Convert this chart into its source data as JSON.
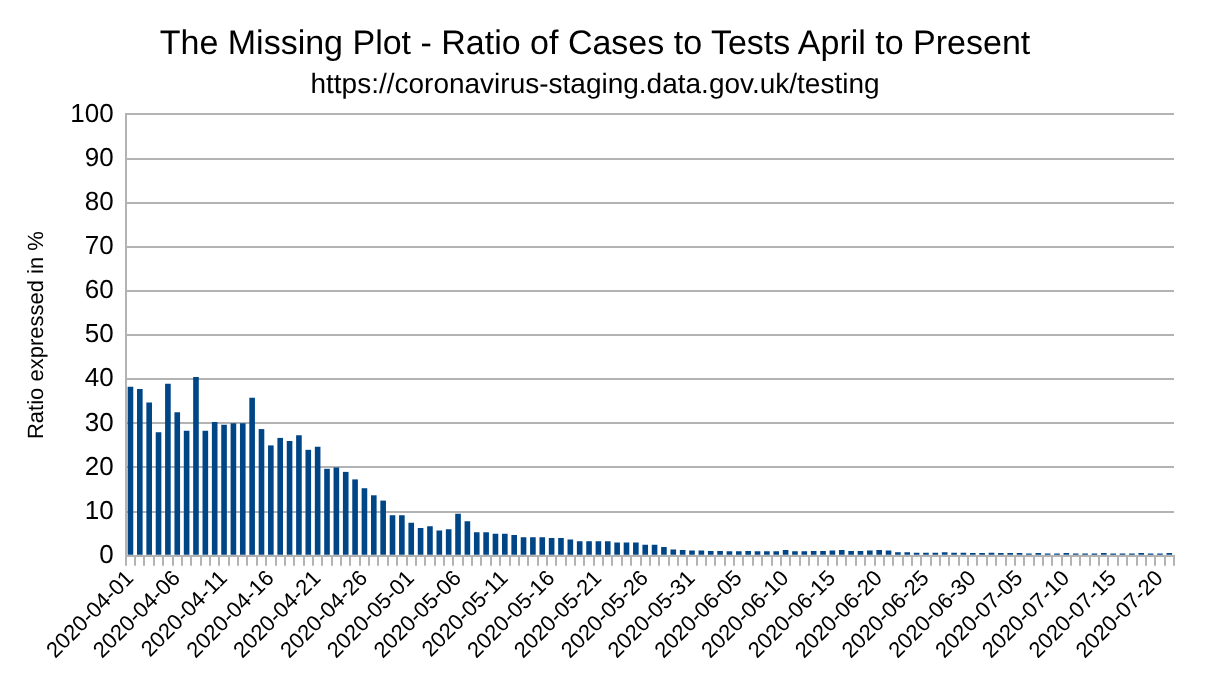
{
  "chart_data": {
    "type": "bar",
    "title": "The Missing Plot - Ratio of Cases to Tests April to Present",
    "subtitle": "https://coronavirus-staging.data.gov.uk/testing",
    "ylabel": "Ratio expressed in %",
    "categories": [
      "2020-04-01",
      null,
      null,
      null,
      null,
      "2020-04-06",
      null,
      null,
      null,
      null,
      "2020-04-11",
      null,
      null,
      null,
      null,
      "2020-04-16",
      null,
      null,
      null,
      null,
      "2020-04-21",
      null,
      null,
      null,
      null,
      "2020-04-26",
      null,
      null,
      null,
      null,
      "2020-05-01",
      null,
      null,
      null,
      null,
      "2020-05-06",
      null,
      null,
      null,
      null,
      "2020-05-11",
      null,
      null,
      null,
      null,
      "2020-05-16",
      null,
      null,
      null,
      null,
      "2020-05-21",
      null,
      null,
      null,
      null,
      "2020-05-26",
      null,
      null,
      null,
      null,
      "2020-05-31",
      null,
      null,
      null,
      null,
      "2020-06-05",
      null,
      null,
      null,
      null,
      "2020-06-10",
      null,
      null,
      null,
      null,
      "2020-06-15",
      null,
      null,
      null,
      null,
      "2020-06-20",
      null,
      null,
      null,
      null,
      "2020-06-25",
      null,
      null,
      null,
      null,
      "2020-06-30",
      null,
      null,
      null,
      null,
      "2020-07-05",
      null,
      null,
      null,
      null,
      "2020-07-10",
      null,
      null,
      null,
      null,
      "2020-07-15",
      null,
      null,
      null,
      null,
      "2020-07-20",
      null
    ],
    "values": [
      38.3,
      37.8,
      34.7,
      28,
      39,
      32.5,
      28.3,
      40.5,
      28.3,
      30.3,
      29.7,
      30,
      30,
      35.8,
      28.7,
      25,
      26.7,
      26,
      27.3,
      24,
      24.7,
      19.7,
      20,
      19,
      17.3,
      15.3,
      13.7,
      12.5,
      9.2,
      9.2,
      7.5,
      6.3,
      6.7,
      5.7,
      6,
      9.5,
      7.8,
      5.3,
      5.3,
      5,
      5,
      4.7,
      4.2,
      4.2,
      4.2,
      4,
      4,
      3.7,
      3.3,
      3.3,
      3.3,
      3.3,
      3,
      3,
      3,
      2.5,
      2.5,
      2,
      1.4,
      1.3,
      1.2,
      1.2,
      1.1,
      1.1,
      1,
      1,
      1.1,
      1,
      1,
      1,
      1.3,
      1,
      1,
      1.1,
      1.1,
      1.2,
      1.3,
      1.1,
      1.1,
      1.2,
      1.3,
      1.2,
      0.8,
      0.8,
      0.7,
      0.7,
      0.7,
      0.8,
      0.7,
      0.7,
      0.6,
      0.6,
      0.7,
      0.6,
      0.6,
      0.6,
      0.5,
      0.6,
      0.5,
      0.5,
      0.6,
      0.5,
      0.5,
      0.5,
      0.6,
      0.5,
      0.5,
      0.5,
      0.6,
      0.5,
      0.5,
      0.6
    ],
    "color": "#004586",
    "ylim": [
      0,
      100
    ],
    "yticks": [
      0,
      10,
      20,
      30,
      40,
      50,
      60,
      70,
      80,
      90,
      100
    ],
    "grid": "y",
    "legend": false
  }
}
